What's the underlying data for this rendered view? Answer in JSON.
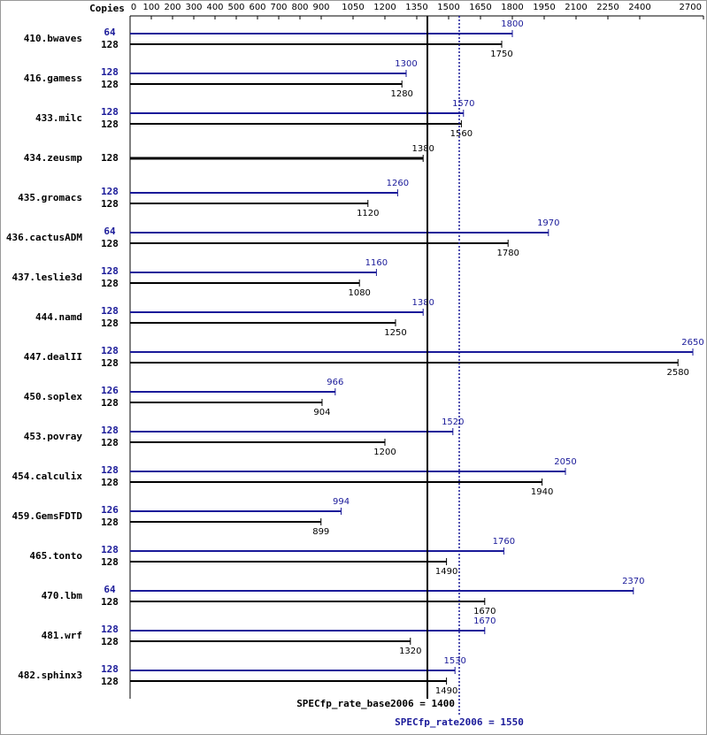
{
  "chart_data": {
    "type": "bar",
    "orientation": "horizontal",
    "copies_label": "Copies",
    "categories": [
      "410.bwaves",
      "416.gamess",
      "433.milc",
      "434.zeusmp",
      "435.gromacs",
      "436.cactusADM",
      "437.leslie3d",
      "444.namd",
      "447.dealII",
      "450.soplex",
      "453.povray",
      "454.calculix",
      "459.GemsFDTD",
      "465.tonto",
      "470.lbm",
      "481.wrf",
      "482.sphinx3"
    ],
    "series": [
      {
        "color": "#1a1a99",
        "copies": [
          64,
          128,
          128,
          null,
          128,
          64,
          128,
          128,
          128,
          126,
          128,
          128,
          126,
          128,
          64,
          128,
          128
        ],
        "values": [
          1800,
          1300,
          1570,
          null,
          1260,
          1970,
          1160,
          1380,
          2650,
          966,
          1520,
          2050,
          994,
          1760,
          2370,
          1670,
          1530
        ]
      },
      {
        "color": "#000000",
        "copies": [
          128,
          128,
          128,
          128,
          128,
          128,
          128,
          128,
          128,
          128,
          128,
          128,
          128,
          128,
          128,
          128,
          128
        ],
        "values": [
          1750,
          1280,
          1560,
          1380,
          1120,
          1780,
          1080,
          1250,
          2580,
          904,
          1200,
          1940,
          899,
          1490,
          1670,
          1320,
          1490
        ]
      }
    ],
    "xlim": [
      0,
      2700
    ],
    "xticks": [
      0,
      100,
      200,
      300,
      400,
      500,
      600,
      700,
      800,
      900,
      1050,
      1200,
      1350,
      1500,
      1650,
      1800,
      1950,
      2100,
      2250,
      2400,
      2700
    ],
    "reference_lines": [
      {
        "label": "SPECfp_rate_base2006 = 1400",
        "value": 1400,
        "color": "#000000",
        "style": "solid"
      },
      {
        "label": "SPECfp_rate2006 = 1550",
        "value": 1550,
        "color": "#1a1a99",
        "style": "dotted"
      }
    ]
  }
}
